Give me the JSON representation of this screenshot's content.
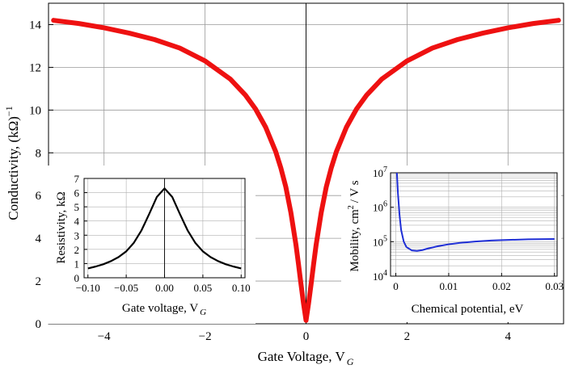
{
  "chart_data": [
    {
      "id": "main",
      "type": "line",
      "xlabel_text": "Gate Voltage, V",
      "xlabel_sub": "G",
      "ylabel_text": "Conductivity, (kΩ)",
      "ylabel_sup": "−1",
      "xlim": [
        -5.1,
        5.1
      ],
      "ylim": [
        0,
        15
      ],
      "xticks": [
        -4,
        -2,
        0,
        2,
        4
      ],
      "xtick_labels": [
        "−4",
        "−2",
        "0",
        "2",
        "4"
      ],
      "yticks": [
        0,
        2,
        4,
        6,
        8,
        10,
        12,
        14
      ],
      "ytick_labels": [
        "0",
        "2",
        "4",
        "6",
        "8",
        "10",
        "12",
        "14"
      ],
      "grid": true,
      "series": [
        {
          "name": "conductivity",
          "color": "#ee1111",
          "x": [
            -5,
            -4.5,
            -4,
            -3.5,
            -3,
            -2.5,
            -2,
            -1.5,
            -1.2,
            -1,
            -0.8,
            -0.6,
            -0.5,
            -0.4,
            -0.3,
            -0.2,
            -0.15,
            -0.1,
            -0.05,
            0,
            0.05,
            0.1,
            0.15,
            0.2,
            0.3,
            0.4,
            0.5,
            0.6,
            0.8,
            1,
            1.2,
            1.5,
            2,
            2.5,
            3,
            3.5,
            4,
            4.5,
            5
          ],
          "y": [
            14.2,
            14.05,
            13.85,
            13.6,
            13.3,
            12.9,
            12.3,
            11.45,
            10.7,
            10.05,
            9.2,
            8.05,
            7.3,
            6.4,
            5.2,
            3.7,
            2.8,
            1.85,
            0.95,
            0.16,
            0.95,
            1.85,
            2.8,
            3.7,
            5.2,
            6.4,
            7.3,
            8.05,
            9.2,
            10.05,
            10.7,
            11.45,
            12.3,
            12.9,
            13.3,
            13.6,
            13.85,
            14.05,
            14.2
          ]
        }
      ]
    },
    {
      "id": "inset-resistivity",
      "type": "line",
      "xlabel_text": "Gate voltage, V",
      "xlabel_sub": "G",
      "ylabel_text": "Resistivity, kΩ",
      "xlim": [
        -0.105,
        0.105
      ],
      "ylim": [
        0,
        7
      ],
      "xticks": [
        -0.1,
        -0.05,
        0,
        0.05,
        0.1
      ],
      "xtick_labels": [
        "−0.10",
        "−0.05",
        "0.00",
        "0.05",
        "0.10"
      ],
      "yticks": [
        0,
        1,
        2,
        3,
        4,
        5,
        6,
        7
      ],
      "ytick_labels": [
        "0",
        "1",
        "2",
        "3",
        "4",
        "5",
        "6",
        "7"
      ],
      "grid": true,
      "series": [
        {
          "name": "resistivity",
          "color": "#000000",
          "x": [
            -0.1,
            -0.09,
            -0.08,
            -0.07,
            -0.06,
            -0.05,
            -0.04,
            -0.03,
            -0.02,
            -0.01,
            0,
            0.01,
            0.02,
            0.03,
            0.04,
            0.05,
            0.06,
            0.07,
            0.08,
            0.09,
            0.1
          ],
          "y": [
            0.66,
            0.79,
            0.95,
            1.17,
            1.46,
            1.86,
            2.47,
            3.35,
            4.5,
            5.7,
            6.3,
            5.7,
            4.5,
            3.35,
            2.47,
            1.86,
            1.46,
            1.17,
            0.95,
            0.79,
            0.66
          ]
        }
      ]
    },
    {
      "id": "inset-mobility",
      "type": "line",
      "yscale": "log",
      "xlabel_text": "Chemical potential, eV",
      "ylabel_text": "Mobility, cm",
      "ylabel_sup": "2",
      "ylabel_tail": "/ V s",
      "xlim": [
        -0.001,
        0.0305
      ],
      "ylim": [
        10000,
        10000000
      ],
      "xticks": [
        0,
        0.01,
        0.02,
        0.03
      ],
      "xtick_labels": [
        "0",
        "0.01",
        "0.02",
        "0.03"
      ],
      "yticks": [
        10000,
        100000,
        1000000,
        10000000
      ],
      "ytick_base": "10",
      "ytick_exps": [
        "4",
        "5",
        "6",
        "7"
      ],
      "grid": true,
      "series": [
        {
          "name": "mobility",
          "color": "#1f2fd6",
          "x": [
            0.0002,
            0.0004,
            0.0007,
            0.001,
            0.0015,
            0.002,
            0.003,
            0.004,
            0.005,
            0.006,
            0.008,
            0.01,
            0.012,
            0.015,
            0.018,
            0.02,
            0.025,
            0.03
          ],
          "y": [
            10000000,
            2500000,
            600000,
            220000,
            100000,
            70000,
            56000,
            54000,
            57000,
            63000,
            74000,
            84000,
            92000,
            101000,
            108000,
            111000,
            117000,
            120000
          ]
        }
      ]
    }
  ]
}
